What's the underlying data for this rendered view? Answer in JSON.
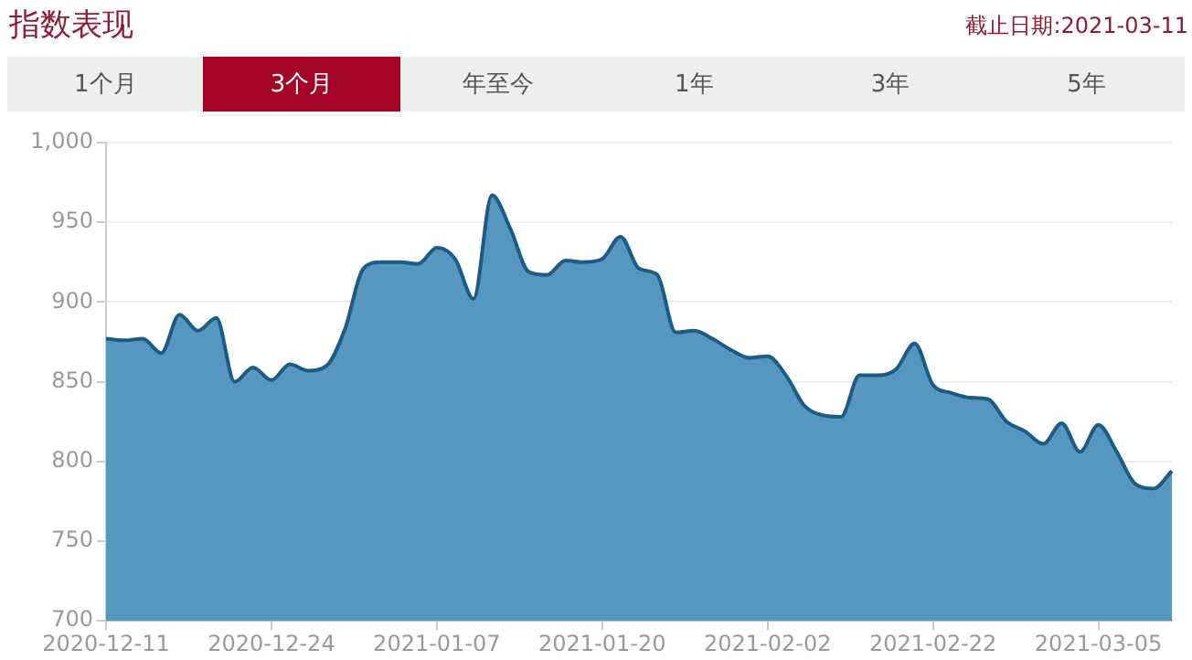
{
  "chart_data": {
    "type": "area",
    "title": "指数表现",
    "annotations": [
      "截止日期:2021-03-11",
      "1个月",
      "3个月",
      "年至今",
      "1年",
      "3年",
      "5年"
    ],
    "categories": [
      "2020-12-11",
      null,
      null,
      null,
      null,
      null,
      null,
      null,
      null,
      "2020-12-24",
      null,
      null,
      null,
      null,
      null,
      null,
      null,
      null,
      "2021-01-07",
      null,
      null,
      null,
      null,
      null,
      null,
      null,
      null,
      "2021-01-20",
      null,
      null,
      null,
      null,
      null,
      null,
      null,
      null,
      "2021-02-02",
      null,
      null,
      null,
      null,
      null,
      null,
      null,
      null,
      "2021-02-22",
      null,
      null,
      null,
      null,
      null,
      null,
      null,
      null,
      "2021-03-05",
      null,
      null,
      null,
      null
    ],
    "series": [
      {
        "color": "#1d5b82",
        "values": [
          877,
          876,
          877,
          868,
          892,
          882,
          890,
          850,
          859,
          851,
          861,
          857,
          860,
          883,
          921,
          925,
          925,
          924,
          934,
          927,
          902,
          967,
          946,
          919,
          917,
          926,
          925,
          927,
          941,
          921,
          917,
          881,
          882,
          877,
          870,
          865,
          866,
          854,
          835,
          829,
          828,
          854,
          854,
          858,
          874,
          848,
          843,
          840,
          839,
          825,
          819,
          811,
          824,
          806,
          823,
          806,
          786,
          783,
          794
        ]
      }
    ],
    "ylim": [
      700,
      1000
    ],
    "yticks": [
      700,
      750,
      800,
      850,
      900,
      950,
      {
        "value": 1000,
        "label": "1,000"
      }
    ],
    "grid": "y",
    "legend": false,
    "marker": "none",
    "line_style": "solid"
  }
}
